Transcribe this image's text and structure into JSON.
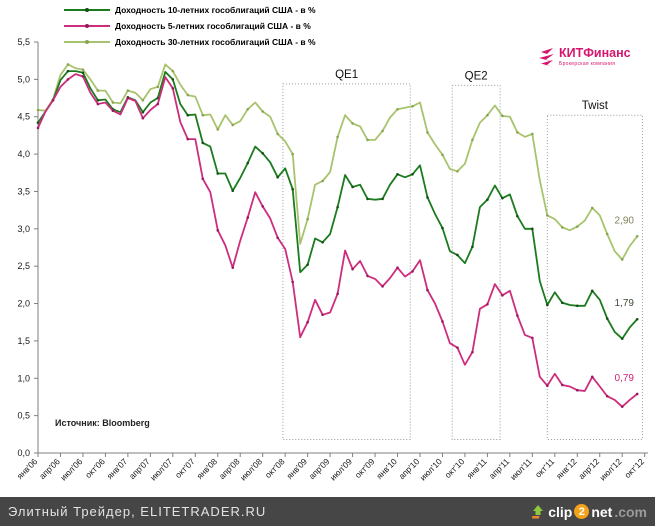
{
  "chart_data": {
    "type": "line",
    "title": "",
    "ylim": [
      0,
      5.5
    ],
    "y_tick_step": 0.5,
    "y_tick_labels": [
      "5,5",
      "5,0",
      "4,5",
      "4,0",
      "3,5",
      "3,0",
      "2,5",
      "2,0",
      "1,5",
      "1,0",
      "0,5",
      "0,0"
    ],
    "x_tick_labels": [
      "янв'06",
      "апр'06",
      "июл'06",
      "окт'06",
      "янв'07",
      "апр'07",
      "июл'07",
      "окт'07",
      "янв'08",
      "апр'08",
      "июл'08",
      "окт'08",
      "янв'09",
      "апр'09",
      "июл'09",
      "окт'09",
      "янв'10",
      "апр'10",
      "июл'10",
      "окт'10",
      "янв'11",
      "апр'11",
      "июл'11",
      "окт'11",
      "янв'12",
      "апр'12",
      "июл'12",
      "окт'12"
    ],
    "x_unit": "month",
    "points_start": "янв'06",
    "points_end": "сен'12",
    "grid": false,
    "legend_position": "top-left",
    "series": [
      {
        "key": "10y",
        "name": "Доходность 10-летних гособлигаций США - в %",
        "color": "#1b7b1e",
        "dot_color": "#125014",
        "values": [
          4.42,
          4.57,
          4.72,
          4.99,
          5.11,
          5.11,
          5.09,
          4.88,
          4.72,
          4.73,
          4.6,
          4.56,
          4.76,
          4.72,
          4.56,
          4.69,
          4.75,
          5.1,
          5.0,
          4.67,
          4.52,
          4.53,
          4.15,
          4.1,
          3.74,
          3.74,
          3.51,
          3.68,
          3.88,
          4.1,
          4.01,
          3.89,
          3.69,
          3.81,
          3.53,
          2.42,
          2.52,
          2.87,
          2.82,
          2.93,
          3.29,
          3.72,
          3.56,
          3.59,
          3.4,
          3.39,
          3.4,
          3.59,
          3.73,
          3.69,
          3.73,
          3.85,
          3.42,
          3.2,
          3.01,
          2.7,
          2.65,
          2.54,
          2.76,
          3.29,
          3.39,
          3.58,
          3.41,
          3.46,
          3.17,
          3.0,
          3.0,
          2.3,
          1.98,
          2.15,
          2.01,
          1.98,
          1.97,
          1.97,
          2.17,
          2.05,
          1.8,
          1.62,
          1.53,
          1.68,
          1.79
        ]
      },
      {
        "key": "5y",
        "name": "Доходность 5-летних гособлигаций США - в %",
        "color": "#cd2d7d",
        "dot_color": "#99195f",
        "values": [
          4.35,
          4.57,
          4.72,
          4.9,
          5.0,
          5.07,
          5.04,
          4.82,
          4.67,
          4.69,
          4.58,
          4.53,
          4.75,
          4.71,
          4.48,
          4.59,
          4.67,
          5.03,
          4.88,
          4.43,
          4.2,
          4.2,
          3.67,
          3.49,
          2.98,
          2.78,
          2.48,
          2.84,
          3.15,
          3.49,
          3.3,
          3.14,
          2.88,
          2.73,
          2.29,
          1.55,
          1.75,
          2.05,
          1.85,
          1.88,
          2.13,
          2.71,
          2.46,
          2.57,
          2.37,
          2.33,
          2.23,
          2.34,
          2.48,
          2.36,
          2.43,
          2.58,
          2.18,
          2.0,
          1.76,
          1.47,
          1.41,
          1.18,
          1.35,
          1.93,
          1.99,
          2.26,
          2.11,
          2.17,
          1.84,
          1.58,
          1.54,
          1.02,
          0.9,
          1.06,
          0.91,
          0.89,
          0.84,
          0.83,
          1.02,
          0.89,
          0.76,
          0.71,
          0.62,
          0.71,
          0.79
        ]
      },
      {
        "key": "30y",
        "name": "Доходность 30-летних гособлигаций США - в %",
        "color": "#a8c36d",
        "dot_color": "#8aa551",
        "values": [
          4.59,
          4.58,
          4.73,
          5.06,
          5.2,
          5.15,
          5.13,
          5.0,
          4.85,
          4.85,
          4.69,
          4.68,
          4.85,
          4.82,
          4.72,
          4.87,
          4.9,
          5.2,
          5.11,
          4.93,
          4.79,
          4.77,
          4.52,
          4.53,
          4.33,
          4.52,
          4.39,
          4.44,
          4.6,
          4.69,
          4.57,
          4.5,
          4.27,
          4.17,
          4.0,
          2.8,
          3.13,
          3.59,
          3.64,
          3.76,
          4.23,
          4.52,
          4.41,
          4.37,
          4.19,
          4.19,
          4.31,
          4.49,
          4.6,
          4.62,
          4.64,
          4.69,
          4.29,
          4.13,
          3.99,
          3.8,
          3.77,
          3.87,
          4.19,
          4.42,
          4.52,
          4.65,
          4.51,
          4.5,
          4.29,
          4.23,
          4.27,
          3.65,
          3.18,
          3.13,
          3.02,
          2.98,
          3.03,
          3.11,
          3.28,
          3.18,
          2.93,
          2.7,
          2.59,
          2.77,
          2.9
        ]
      }
    ],
    "annotations": [
      {
        "label": "QE1",
        "month_from": 32.7,
        "month_to": 49.7,
        "top_value": 4.94,
        "bottom_value": 0.18
      },
      {
        "label": "QE2",
        "month_from": 55.3,
        "month_to": 61.7,
        "top_value": 4.92,
        "bottom_value": 0.18
      },
      {
        "label": "Twist",
        "month_from": 68.0,
        "month_to": 80.7,
        "top_value": 4.52,
        "bottom_value": 0.18
      }
    ],
    "end_labels": [
      {
        "text": "2,90",
        "value": 2.9,
        "series": "30y",
        "color": "#82825c"
      },
      {
        "text": "1,79",
        "value": 1.79,
        "series": "10y",
        "color": "#3c4a35"
      },
      {
        "text": "0,79",
        "value": 0.79,
        "series": "5y",
        "color": "#cc2277"
      }
    ],
    "source": "Источник: Bloomberg"
  },
  "branding": {
    "kit_bold": "КИТ",
    "kit_rest": "Финанс",
    "kit_sub": "Брокерская компания",
    "kit_color": "#d6166e"
  },
  "footer": {
    "site_text": "Элитный Трейдер, ELITETRADER.RU",
    "clip_prefix": "clip",
    "clip_num": "2",
    "clip_suffix": "net",
    "clip_tld": ".com"
  }
}
